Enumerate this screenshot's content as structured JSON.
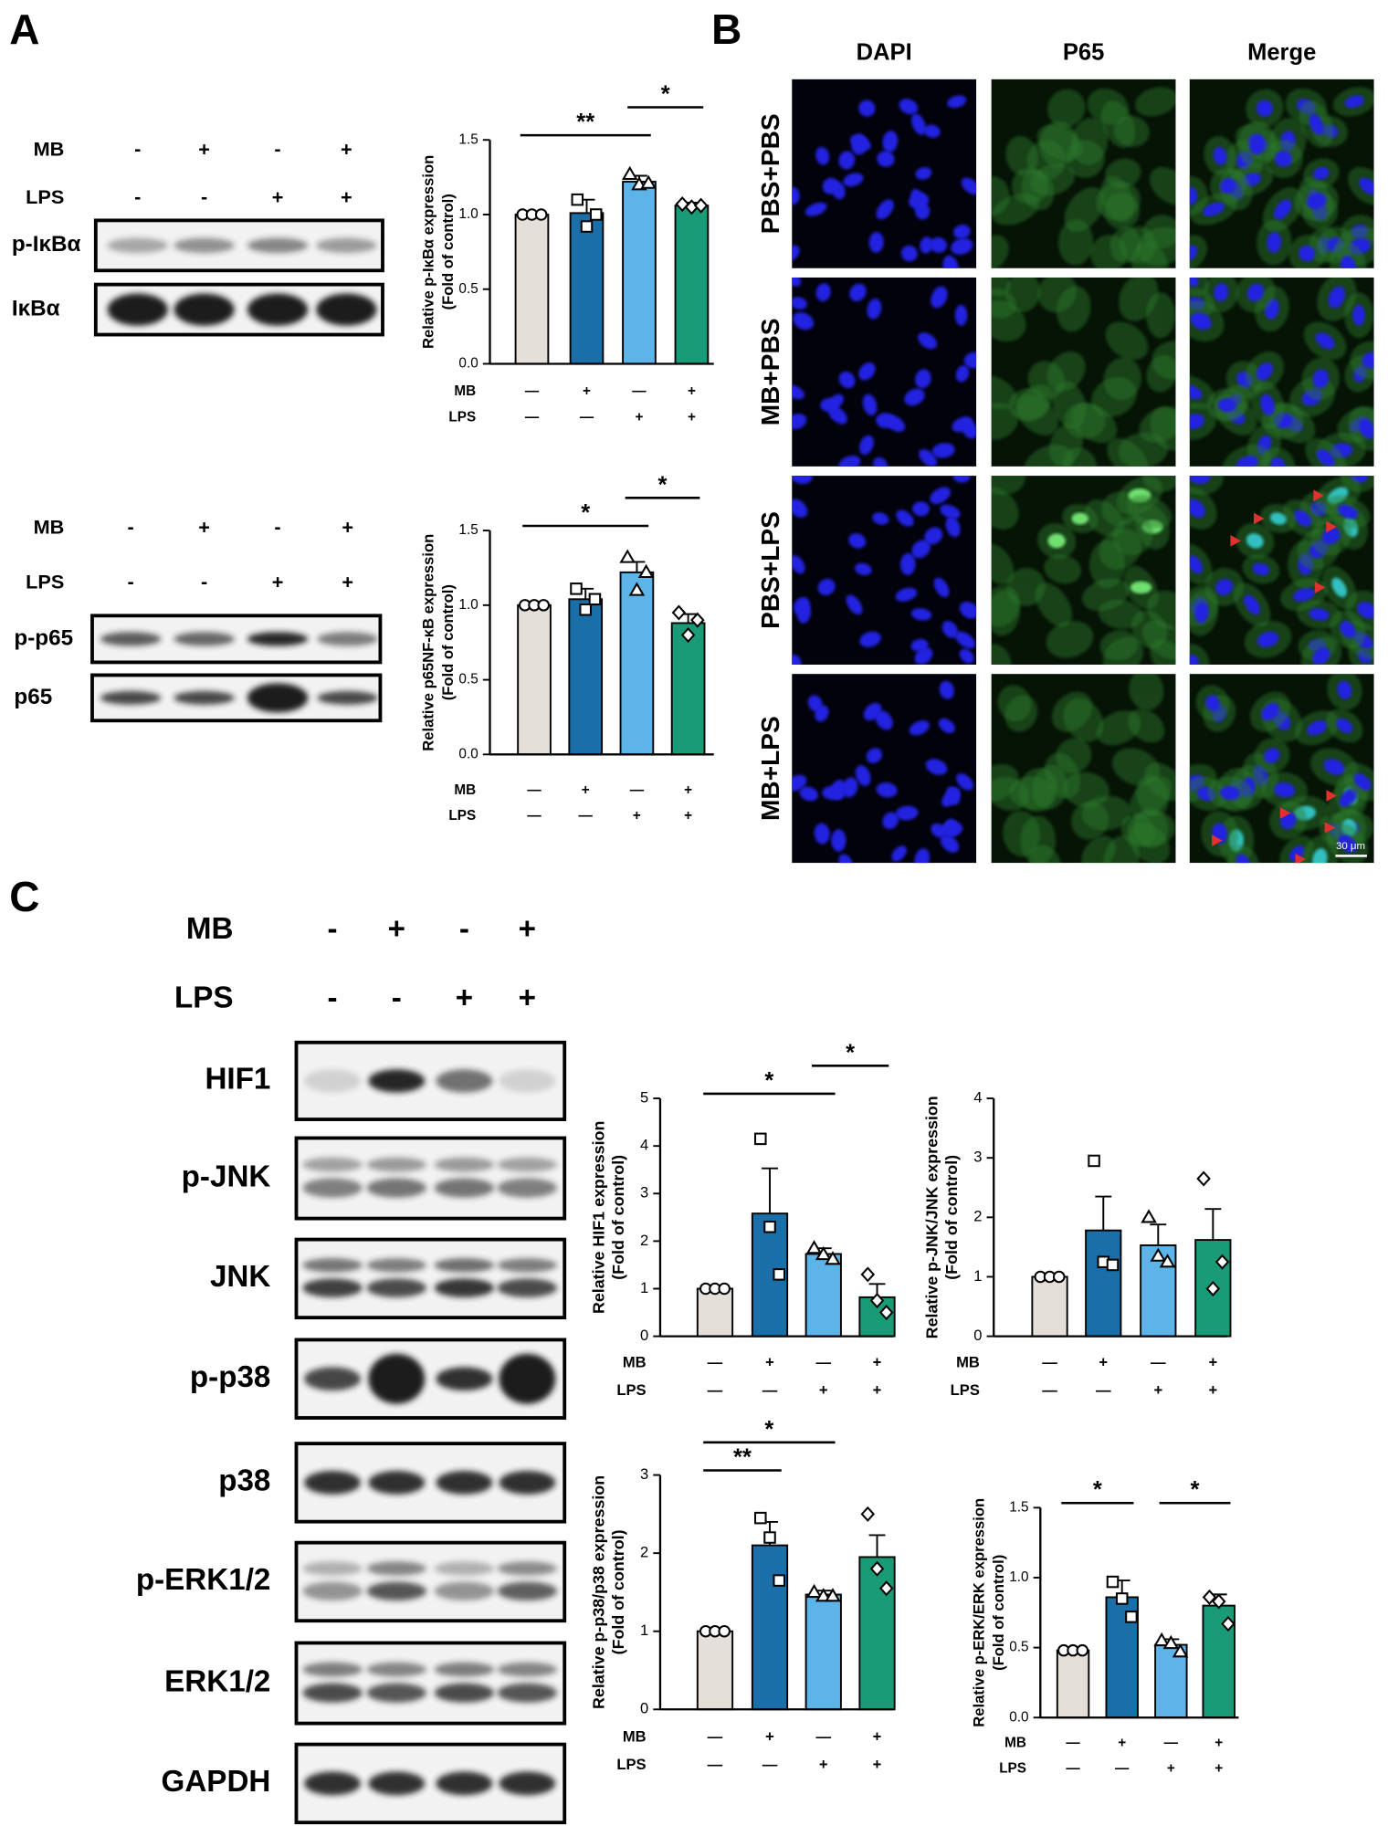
{
  "panels": [
    "A",
    "B",
    "C"
  ],
  "panel_a": {
    "blots": [
      {
        "treatments": [
          {
            "label": "MB",
            "marks": [
              "-",
              "+",
              "-",
              "+"
            ]
          },
          {
            "label": "LPS",
            "marks": [
              "-",
              "-",
              "+",
              "+"
            ]
          }
        ],
        "bands": [
          "p-IκBα",
          "IκBα"
        ]
      },
      {
        "treatments": [
          {
            "label": "MB",
            "marks": [
              "-",
              "+",
              "-",
              "+"
            ]
          },
          {
            "label": "LPS",
            "marks": [
              "-",
              "-",
              "+",
              "+"
            ]
          }
        ],
        "bands": [
          "p-p65",
          "p65"
        ]
      }
    ]
  },
  "panel_b": {
    "columns": [
      "DAPI",
      "P65",
      "Merge"
    ],
    "rows": [
      "PBS+PBS",
      "MB+PBS",
      "PBS+LPS",
      "MB+LPS"
    ],
    "scale_bar": "30 μm"
  },
  "panel_c": {
    "treatments": [
      {
        "label": "MB",
        "marks": [
          "-",
          "+",
          "-",
          "+"
        ]
      },
      {
        "label": "LPS",
        "marks": [
          "-",
          "-",
          "+",
          "+"
        ]
      }
    ],
    "bands": [
      "HIF1",
      "p-JNK",
      "JNK",
      "p-p38",
      "p38",
      "p-ERK1/2",
      "ERK1/2",
      "GAPDH"
    ]
  },
  "chart_data": [
    {
      "type": "bar",
      "ylabel": [
        "Relative p-IκBα expression",
        "(Fold of control)"
      ],
      "ylim": [
        0,
        1.5
      ],
      "yticks": [
        {
          "value": 0,
          "label": "0.0"
        },
        {
          "value": 0.5,
          "label": "0.5"
        },
        {
          "value": 1,
          "label": "1.0"
        },
        {
          "value": 1.5,
          "label": "1.5"
        }
      ],
      "colors": [
        "#e4e0d9",
        "#1b6fa8",
        "#5db4e8",
        "#1a9b78"
      ],
      "values": [
        1.0,
        1.01,
        1.22,
        1.06
      ],
      "errors": [
        0,
        0.09,
        0.04,
        0.02
      ],
      "points": [
        [
          1,
          1,
          1
        ],
        [
          1.1,
          0.92,
          1.0
        ],
        [
          1.27,
          1.2,
          1.21
        ],
        [
          1.07,
          1.05,
          1.06
        ]
      ],
      "groups": [
        {
          "label": "MB",
          "marks": [
            "—",
            "+",
            "—",
            "+"
          ]
        },
        {
          "label": "LPS",
          "marks": [
            "—",
            "—",
            "+",
            "+"
          ]
        }
      ],
      "significance": [
        {
          "from": 0,
          "to": 2,
          "label": "**"
        },
        {
          "from": 2,
          "to": 3,
          "label": "*"
        }
      ]
    },
    {
      "type": "bar",
      "ylabel": [
        "Relative p65NF-κB expression",
        "(Fold of control)"
      ],
      "ylim": [
        0,
        1.5
      ],
      "yticks": [
        {
          "value": 0,
          "label": "0.0"
        },
        {
          "value": 0.5,
          "label": "0.5"
        },
        {
          "value": 1,
          "label": "1.0"
        },
        {
          "value": 1.5,
          "label": "1.5"
        }
      ],
      "colors": [
        "#e4e0d9",
        "#1b6fa8",
        "#5db4e8",
        "#1a9b78"
      ],
      "values": [
        1.0,
        1.04,
        1.22,
        0.88
      ],
      "errors": [
        0,
        0.07,
        0.07,
        0.06
      ],
      "points": [
        [
          1,
          1,
          1
        ],
        [
          1.11,
          0.97,
          1.04
        ],
        [
          1.32,
          1.1,
          1.22
        ],
        [
          0.95,
          0.8,
          0.9
        ]
      ],
      "groups": [
        {
          "label": "MB",
          "marks": [
            "—",
            "+",
            "—",
            "+"
          ]
        },
        {
          "label": "LPS",
          "marks": [
            "—",
            "—",
            "+",
            "+"
          ]
        }
      ],
      "significance": [
        {
          "from": 0,
          "to": 2,
          "label": "*"
        },
        {
          "from": 2,
          "to": 3,
          "label": "*"
        }
      ]
    },
    {
      "type": "bar",
      "ylabel": [
        "Relative HIF1 expression",
        "(Fold of control)"
      ],
      "ylim": [
        0,
        5
      ],
      "yticks": [
        0,
        1,
        2,
        3,
        4,
        5
      ],
      "colors": [
        "#e4e0d9",
        "#1b6fa8",
        "#5db4e8",
        "#1a9b78"
      ],
      "values": [
        1.0,
        2.58,
        1.73,
        0.82
      ],
      "errors": [
        0,
        0.95,
        0.12,
        0.28
      ],
      "points": [
        [
          1,
          1,
          1
        ],
        [
          4.15,
          2.3,
          1.3
        ],
        [
          1.85,
          1.72,
          1.62
        ],
        [
          1.3,
          0.75,
          0.5
        ]
      ],
      "groups": [
        {
          "label": "MB",
          "marks": [
            "—",
            "+",
            "—",
            "+"
          ]
        },
        {
          "label": "LPS",
          "marks": [
            "—",
            "—",
            "+",
            "+"
          ]
        }
      ],
      "significance": [
        {
          "from": 0,
          "to": 2,
          "label": "*"
        },
        {
          "from": 2,
          "to": 3,
          "label": "*"
        }
      ]
    },
    {
      "type": "bar",
      "ylabel": [
        "Relative p-JNK/JNK expression",
        "(Fold of control)"
      ],
      "ylim": [
        0,
        4
      ],
      "yticks": [
        0,
        1,
        2,
        3,
        4
      ],
      "colors": [
        "#e4e0d9",
        "#1b6fa8",
        "#5db4e8",
        "#1a9b78"
      ],
      "values": [
        1.0,
        1.78,
        1.53,
        1.62
      ],
      "errors": [
        0,
        0.57,
        0.35,
        0.52
      ],
      "points": [
        [
          1,
          1,
          1
        ],
        [
          2.95,
          1.25,
          1.2
        ],
        [
          2.0,
          1.35,
          1.25
        ],
        [
          2.65,
          0.8,
          1.25
        ]
      ],
      "groups": [
        {
          "label": "MB",
          "marks": [
            "—",
            "+",
            "—",
            "+"
          ]
        },
        {
          "label": "LPS",
          "marks": [
            "—",
            "—",
            "+",
            "+"
          ]
        }
      ],
      "significance": []
    },
    {
      "type": "bar",
      "ylabel": [
        "Relative p-p38/p38 expression",
        "(Fold of control)"
      ],
      "ylim": [
        0,
        3
      ],
      "yticks": [
        0,
        1,
        2,
        3
      ],
      "colors": [
        "#e4e0d9",
        "#1b6fa8",
        "#5db4e8",
        "#1a9b78"
      ],
      "values": [
        1.0,
        2.1,
        1.47,
        1.95
      ],
      "errors": [
        0,
        0.3,
        0.05,
        0.28
      ],
      "points": [
        [
          1,
          1,
          1
        ],
        [
          2.45,
          2.2,
          1.65
        ],
        [
          1.5,
          1.45,
          1.45
        ],
        [
          2.5,
          1.8,
          1.55
        ]
      ],
      "groups": [
        {
          "label": "MB",
          "marks": [
            "—",
            "+",
            "—",
            "+"
          ]
        },
        {
          "label": "LPS",
          "marks": [
            "—",
            "—",
            "+",
            "+"
          ]
        }
      ],
      "significance": [
        {
          "from": 0,
          "to": 1,
          "label": "**"
        },
        {
          "from": 0,
          "to": 2,
          "label": "*"
        }
      ]
    },
    {
      "type": "bar",
      "ylabel": [
        "Relative p-ERK/ERK expression",
        "(Fold of control)"
      ],
      "ylim": [
        0,
        1.5
      ],
      "yticks": [
        {
          "value": 0,
          "label": "0.0"
        },
        {
          "value": 0.5,
          "label": "0.5"
        },
        {
          "value": 1,
          "label": "1.0"
        },
        {
          "value": 1.5,
          "label": "1.5"
        }
      ],
      "colors": [
        "#e4e0d9",
        "#1b6fa8",
        "#5db4e8",
        "#1a9b78"
      ],
      "values": [
        0.48,
        0.86,
        0.52,
        0.8
      ],
      "errors": [
        0,
        0.12,
        0.04,
        0.08
      ],
      "points": [
        [
          0.48,
          0.48,
          0.48
        ],
        [
          0.97,
          0.85,
          0.72
        ],
        [
          0.55,
          0.53,
          0.47
        ],
        [
          0.86,
          0.83,
          0.67
        ]
      ],
      "groups": [
        {
          "label": "MB",
          "marks": [
            "—",
            "+",
            "—",
            "+"
          ]
        },
        {
          "label": "LPS",
          "marks": [
            "—",
            "—",
            "+",
            "+"
          ]
        }
      ],
      "significance": [
        {
          "from": 0,
          "to": 1,
          "label": "*"
        },
        {
          "from": 2,
          "to": 3,
          "label": "*"
        }
      ]
    }
  ]
}
